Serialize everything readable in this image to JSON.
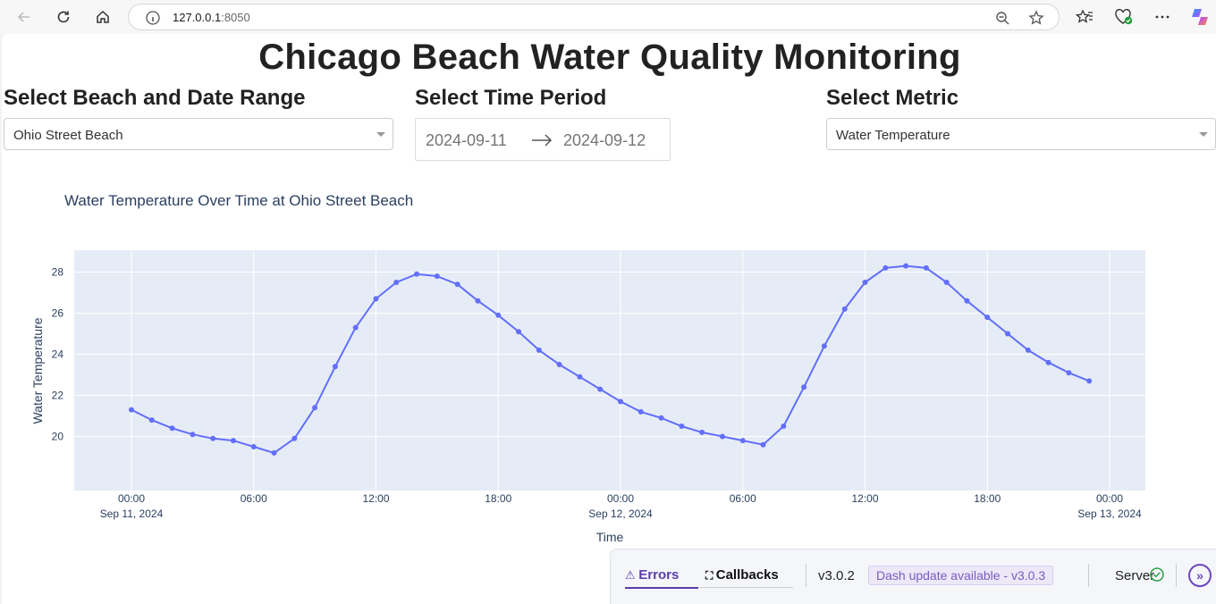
{
  "browser": {
    "url_host": "127.0.0.1",
    "url_port": ":8050"
  },
  "page": {
    "title": "Chicago Beach Water Quality Monitoring",
    "beach_label": "Select Beach and Date Range",
    "time_label": "Select Time Period",
    "metric_label": "Select Metric",
    "beach_value": "Ohio Street Beach",
    "date_start": "2024-09-11",
    "date_end": "2024-09-12",
    "metric_value": "Water Temperature"
  },
  "debug": {
    "errors_label": "Errors",
    "callbacks_label": "Callbacks",
    "version": "v3.0.2",
    "update_text": "Dash update available - v3.0.3",
    "server_label": "Server"
  },
  "colors": {
    "line": "#636efa",
    "plot_bg": "#e5ecf6",
    "accent": "#6b47c0"
  },
  "chart_data": {
    "type": "line",
    "title": "Water Temperature Over Time at Ohio Street Beach",
    "xlabel": "Time",
    "ylabel": "Water Temperature",
    "x_start": "2024-09-11 00:00",
    "x_step_hours": 1,
    "y": [
      21.3,
      20.8,
      20.4,
      20.1,
      19.9,
      19.8,
      19.5,
      19.2,
      19.9,
      21.4,
      23.4,
      25.3,
      26.7,
      27.5,
      27.9,
      27.8,
      27.4,
      26.6,
      25.9,
      25.1,
      24.2,
      23.5,
      22.9,
      22.3,
      21.7,
      21.2,
      20.9,
      20.5,
      20.2,
      20.0,
      19.8,
      19.6,
      20.5,
      22.4,
      24.4,
      26.2,
      27.5,
      28.2,
      28.3,
      28.2,
      27.5,
      26.6,
      25.8,
      25.0,
      24.2,
      23.6,
      23.1,
      22.7
    ],
    "y_ticks": [
      "20",
      "22",
      "24",
      "26",
      "28"
    ],
    "x_ticks": [
      {
        "hour": 0,
        "line1": "00:00",
        "line2": "Sep 11, 2024"
      },
      {
        "hour": 6,
        "line1": "06:00",
        "line2": ""
      },
      {
        "hour": 12,
        "line1": "12:00",
        "line2": ""
      },
      {
        "hour": 18,
        "line1": "18:00",
        "line2": ""
      },
      {
        "hour": 24,
        "line1": "00:00",
        "line2": "Sep 12, 2024"
      },
      {
        "hour": 30,
        "line1": "06:00",
        "line2": ""
      },
      {
        "hour": 36,
        "line1": "12:00",
        "line2": ""
      },
      {
        "hour": 42,
        "line1": "18:00",
        "line2": ""
      },
      {
        "hour": 48,
        "line1": "00:00",
        "line2": "Sep 13, 2024"
      }
    ],
    "grid": true,
    "legend": "none"
  }
}
